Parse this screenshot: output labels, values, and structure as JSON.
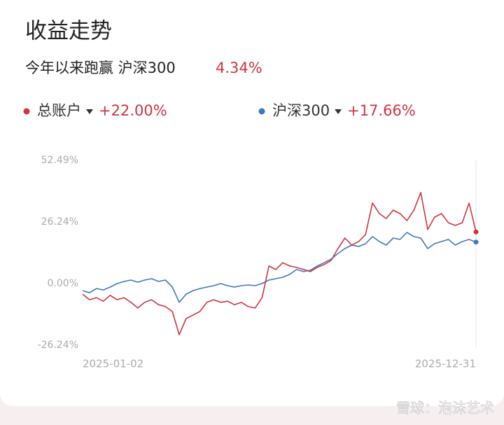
{
  "chart_data": {
    "type": "line",
    "title": "收益走势",
    "subtitle": "今年以来跑赢 沪深300",
    "subtitle_value": "4.34%",
    "watermark": "雪球：泡沫艺术",
    "categories": [
      "2025-01-02",
      null,
      null,
      null,
      null,
      null,
      null,
      null,
      null,
      null,
      null,
      null,
      null,
      null,
      null,
      null,
      null,
      null,
      null,
      null,
      null,
      null,
      null,
      null,
      null,
      null,
      null,
      null,
      null,
      null,
      null,
      null,
      null,
      null,
      null,
      null,
      null,
      null,
      null,
      null,
      null,
      null,
      null,
      null,
      null,
      null,
      null,
      null,
      null,
      null,
      null,
      null,
      null,
      null,
      null,
      null,
      null,
      "2025-12-31"
    ],
    "series": [
      {
        "name": "总账户",
        "color": "#d0343f",
        "change": "+22.00%",
        "values": [
          -4.5,
          -6.9,
          -6,
          -7.5,
          -5,
          -6.9,
          -6,
          -8,
          -10.4,
          -8,
          -6.9,
          -9,
          -9.8,
          -11.9,
          -21.8,
          -14.9,
          -13.4,
          -11.9,
          -8,
          -6.9,
          -8,
          -7.5,
          -9,
          -8,
          -9.8,
          -10.4,
          -6,
          7.5,
          6,
          8.9,
          7.5,
          6.9,
          6,
          5.1,
          6.9,
          8.1,
          9.8,
          14.9,
          19.4,
          16.4,
          17.9,
          20.9,
          34.3,
          29.8,
          27.7,
          31.3,
          29.8,
          26.8,
          31.3,
          38.8,
          23,
          28.3,
          29.8,
          25.9,
          24.8,
          25.9,
          34.3,
          22.0
        ]
      },
      {
        "name": "沪深300",
        "color": "#3f78c0",
        "change": "+17.66%",
        "values": [
          -3,
          -3.9,
          -2.1,
          -2.7,
          -1.5,
          0,
          0.9,
          1.5,
          0.6,
          1.5,
          2.1,
          0.9,
          1.5,
          -1.5,
          -8,
          -4.5,
          -3,
          -2.1,
          -1.5,
          -0.9,
          0,
          -0.9,
          -1.5,
          -0.9,
          -0.6,
          -0.9,
          0,
          1.5,
          2.1,
          2.7,
          3.9,
          6,
          5.1,
          5.7,
          7.5,
          8.9,
          10.4,
          12.8,
          14.9,
          16.4,
          15.8,
          17,
          20,
          17.9,
          16.4,
          19.4,
          18.8,
          21.8,
          20,
          19.4,
          14.9,
          17,
          17.9,
          18.8,
          16.4,
          17.9,
          18.8,
          17.66
        ]
      }
    ],
    "ylim": [
      -26.24,
      52.49
    ],
    "yticks": [
      {
        "value": 52.49,
        "label": "52.49%"
      },
      {
        "value": 26.24,
        "label": "26.24%"
      },
      {
        "value": 0,
        "label": "0.00%"
      },
      {
        "value": -26.24,
        "label": "-26.24%"
      }
    ],
    "grid": false
  }
}
